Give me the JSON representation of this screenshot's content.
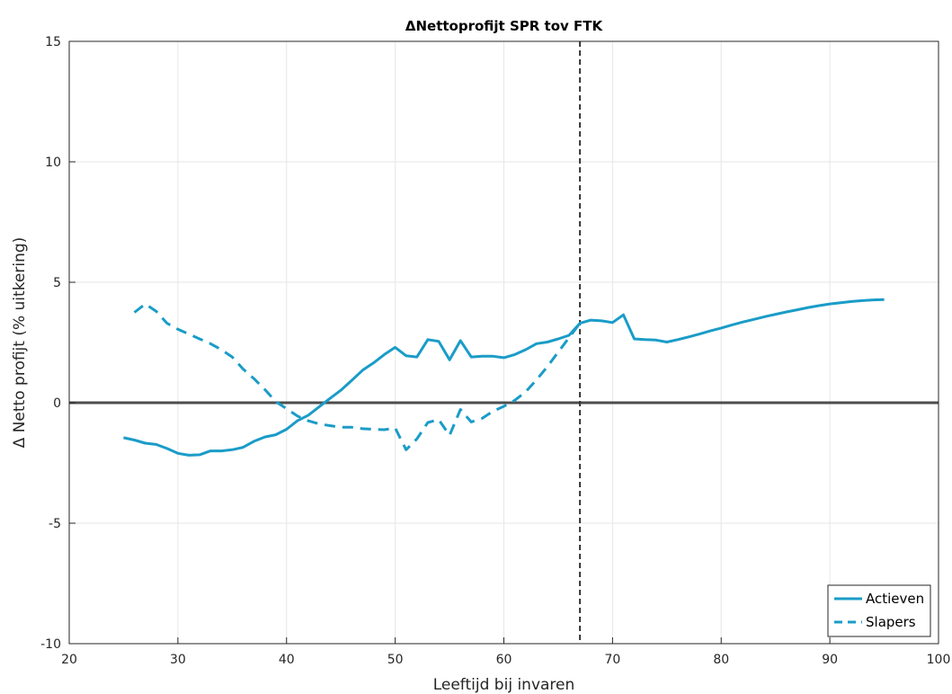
{
  "chart_data": {
    "type": "line",
    "title": "ΔNettoprofijt SPR tov FTK",
    "xlabel": "Leeftijd bij invaren",
    "ylabel": "Δ Netto profijt (% uitkering)",
    "xlim": [
      20,
      100
    ],
    "ylim": [
      -10,
      15
    ],
    "xticks": [
      "20",
      "30",
      "40",
      "50",
      "60",
      "70",
      "80",
      "90",
      "100"
    ],
    "yticks": [
      "-10",
      "-5",
      "0",
      "5",
      "10",
      "15"
    ],
    "grid": true,
    "legend_position": "bottom-right",
    "reference_lines": {
      "horizontal_y": 0,
      "vertical_x": 67
    },
    "colors": {
      "series": "#1a9cc8",
      "zero_line": "#4d4d4d",
      "vertical_line": "#333333",
      "grid": "#e6e6e6",
      "axis": "#262626"
    },
    "series": [
      {
        "name": "Actieven",
        "style": "solid",
        "x": [
          25,
          26,
          27,
          28,
          29,
          30,
          31,
          32,
          33,
          34,
          35,
          36,
          37,
          38,
          39,
          40,
          41,
          42,
          43,
          44,
          45,
          46,
          47,
          48,
          49,
          50,
          51,
          52,
          53,
          54,
          55,
          56,
          57,
          58,
          59,
          60,
          61,
          62,
          63,
          64,
          65,
          66,
          67,
          68,
          69,
          70,
          71,
          72,
          73,
          74,
          75,
          76,
          77,
          78,
          79,
          80,
          81,
          82,
          83,
          84,
          85,
          86,
          87,
          88,
          89,
          90,
          91,
          92,
          93,
          94,
          95
        ],
        "y": [
          -1.45,
          -1.55,
          -1.68,
          -1.73,
          -1.9,
          -2.1,
          -2.18,
          -2.16,
          -2.0,
          -2.0,
          -1.95,
          -1.85,
          -1.6,
          -1.42,
          -1.33,
          -1.1,
          -0.75,
          -0.52,
          -0.17,
          0.18,
          0.52,
          0.93,
          1.35,
          1.65,
          2.0,
          2.3,
          1.95,
          1.9,
          2.62,
          2.55,
          1.78,
          2.58,
          1.9,
          1.93,
          1.93,
          1.87,
          2.0,
          2.2,
          2.45,
          2.52,
          2.65,
          2.8,
          3.3,
          3.43,
          3.4,
          3.33,
          3.65,
          2.65,
          2.62,
          2.6,
          2.52,
          2.62,
          2.73,
          2.85,
          2.98,
          3.1,
          3.23,
          3.35,
          3.46,
          3.57,
          3.67,
          3.77,
          3.86,
          3.95,
          4.03,
          4.1,
          4.15,
          4.2,
          4.24,
          4.27,
          4.28
        ]
      },
      {
        "name": "Slapers",
        "style": "dashed",
        "x": [
          26,
          27,
          28,
          29,
          30,
          31,
          32,
          33,
          34,
          35,
          36,
          37,
          38,
          39,
          40,
          41,
          42,
          43,
          44,
          45,
          46,
          47,
          48,
          49,
          50,
          51,
          52,
          53,
          54,
          55,
          56,
          57,
          58,
          59,
          60,
          61,
          62,
          63,
          64,
          65,
          66,
          67
        ],
        "y": [
          3.75,
          4.1,
          3.8,
          3.3,
          3.05,
          2.85,
          2.65,
          2.45,
          2.2,
          1.9,
          1.4,
          1.0,
          0.55,
          0.05,
          -0.25,
          -0.55,
          -0.75,
          -0.88,
          -0.95,
          -1.02,
          -1.02,
          -1.08,
          -1.1,
          -1.12,
          -1.05,
          -1.95,
          -1.5,
          -0.82,
          -0.7,
          -1.35,
          -0.28,
          -0.8,
          -0.65,
          -0.35,
          -0.15,
          0.1,
          0.45,
          0.95,
          1.5,
          2.1,
          2.7,
          3.3
        ]
      }
    ]
  }
}
